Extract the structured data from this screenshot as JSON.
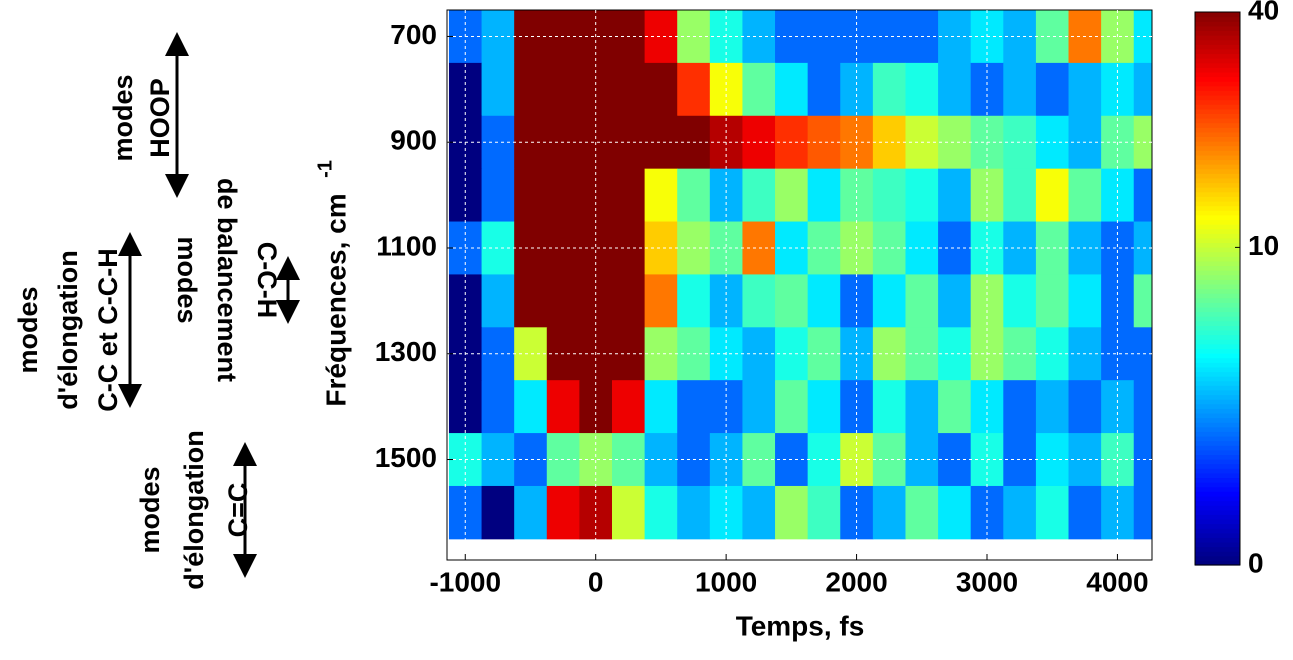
{
  "chart_data": {
    "type": "heatmap",
    "xlabel": "Temps, fs",
    "ylabel": "Fréquences, cm",
    "ylabel_superscript": "-1",
    "xlim": [
      -1140,
      4265
    ],
    "xticks": [
      -1000,
      0,
      1000,
      2000,
      3000,
      4000
    ],
    "ylim": [
      650,
      1690
    ],
    "yticks": [
      700,
      900,
      1100,
      1300,
      1500
    ],
    "y_reversed": true,
    "grid": true,
    "colormap": "jet",
    "clim": [
      0,
      40
    ],
    "color_power": 0.4,
    "cticks": [
      0,
      10,
      40
    ],
    "x": [
      -1000,
      -750,
      -500,
      -250,
      0,
      250,
      500,
      750,
      1000,
      1250,
      1500,
      1750,
      2000,
      2250,
      2500,
      2750,
      3000,
      3250,
      3500,
      3750,
      4000,
      4250
    ],
    "y": [
      700,
      800,
      900,
      1000,
      1100,
      1200,
      1300,
      1400,
      1500,
      1600
    ],
    "z": [
      [
        1,
        2,
        40,
        40,
        40,
        40,
        30,
        8,
        4,
        2,
        1,
        1,
        1,
        1,
        1,
        2,
        3,
        2,
        6,
        20,
        8,
        3
      ],
      [
        0,
        2,
        40,
        40,
        40,
        40,
        40,
        25,
        12,
        6,
        3,
        1,
        2,
        5,
        4,
        2,
        1,
        2,
        1,
        2,
        3,
        2
      ],
      [
        0,
        1,
        40,
        40,
        40,
        40,
        40,
        40,
        35,
        30,
        25,
        22,
        20,
        15,
        10,
        8,
        6,
        5,
        3,
        2,
        6,
        8
      ],
      [
        0,
        1,
        40,
        40,
        40,
        40,
        12,
        6,
        2,
        5,
        8,
        3,
        6,
        5,
        4,
        2,
        8,
        5,
        12,
        6,
        3,
        1
      ],
      [
        1,
        4,
        40,
        40,
        40,
        40,
        15,
        8,
        6,
        20,
        3,
        6,
        8,
        6,
        3,
        1,
        4,
        2,
        6,
        2,
        1,
        2
      ],
      [
        0,
        2,
        40,
        40,
        40,
        40,
        20,
        4,
        2,
        5,
        6,
        3,
        1,
        3,
        6,
        2,
        8,
        4,
        6,
        3,
        1,
        6
      ],
      [
        0,
        1,
        10,
        40,
        40,
        40,
        8,
        6,
        3,
        2,
        4,
        6,
        2,
        8,
        6,
        4,
        8,
        6,
        4,
        2,
        1,
        1
      ],
      [
        0,
        1,
        3,
        30,
        40,
        30,
        3,
        1,
        1,
        2,
        6,
        3,
        1,
        4,
        2,
        6,
        3,
        1,
        2,
        1,
        2,
        1
      ],
      [
        4,
        2,
        1,
        6,
        8,
        6,
        2,
        1,
        2,
        6,
        1,
        4,
        10,
        6,
        2,
        1,
        4,
        1,
        3,
        2,
        5,
        1
      ],
      [
        1,
        0,
        2,
        30,
        35,
        10,
        4,
        2,
        3,
        2,
        8,
        5,
        1,
        2,
        6,
        3,
        1,
        2,
        4,
        1,
        2,
        1
      ]
    ],
    "annotations": [
      {
        "lines": [
          "modes",
          "HOOP"
        ]
      },
      {
        "lines": [
          "modes",
          "d'élongation",
          "C-C et C-C-H"
        ]
      },
      {
        "lines": [
          "modes",
          "de balancement",
          "C-C-H"
        ]
      },
      {
        "lines": [
          "modes",
          "d'élongation",
          "C=C"
        ]
      }
    ]
  }
}
